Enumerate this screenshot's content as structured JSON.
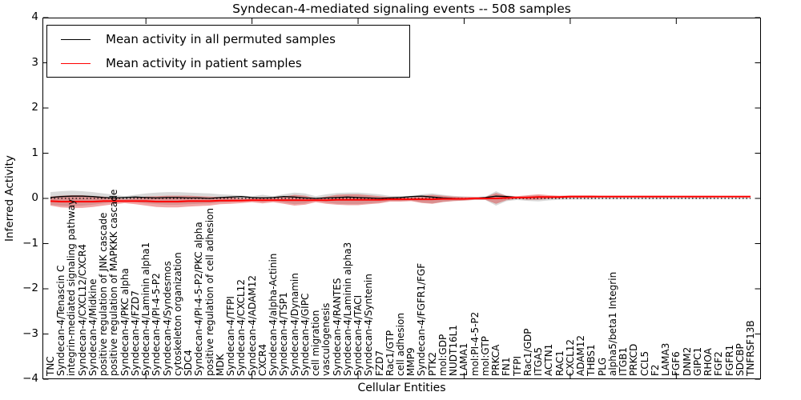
{
  "chart_data": {
    "type": "line",
    "title": "Syndecan-4-mediated signaling events -- 508 samples",
    "xlabel": "Cellular Entities",
    "ylabel": "Inferred Activity",
    "ylim": [
      -4,
      4
    ],
    "ytick_labels": [
      "4",
      "3",
      "2",
      "1",
      "0",
      "−1",
      "−2",
      "−3",
      "−4"
    ],
    "ytick_values": [
      4,
      3,
      2,
      1,
      0,
      -1,
      -2,
      -3,
      -4
    ],
    "xticks_major_indices": [
      9,
      19,
      29,
      39,
      49,
      59
    ],
    "grid": false,
    "legend_position": "upper left",
    "legend": [
      {
        "label": "Mean activity in all permuted samples",
        "color": "#000000"
      },
      {
        "label": "Mean activity in patient samples",
        "color": "#ff0000"
      }
    ],
    "zero_line": {
      "style": "dotted",
      "color": "#000000",
      "value": 0
    },
    "categories": [
      "TNC",
      "Syndecan-4/Tenascin C",
      "integrin-mediated signaling pathway",
      "Syndecan-4/CXCL12/CXCR4",
      "Syndecan-4/Midkine",
      "positive regulation of JNK cascade",
      "positive regulation of MAPKKK cascade",
      "Syndecan-4/PKC alpha",
      "Syndecan-4/FZD7",
      "Syndecan-4/Laminin alpha1",
      "Syndecan-4/PI-4-5-P2",
      "Syndecan-4/Syndesmos",
      "cytoskeleton organization",
      "SDC4",
      "Syndecan-4/PI-4-5-P2/PKC alpha",
      "positive regulation of cell adhesion",
      "MDK",
      "Syndecan-4/TFPI",
      "Syndecan-4/CXCL12",
      "Syndecan-4/ADAM12",
      "CXCR4",
      "Syndecan-4/alpha-Actinin",
      "Syndecan-4/TSP1",
      "Syndecan-4/Dynamin",
      "Syndecan-4/GIPC",
      "cell migration",
      "vasculogenesis",
      "Syndecan-4/RANTES",
      "Syndecan-4/Laminin alpha3",
      "Syndecan-4/TACI",
      "Syndecan-4/Syntenin",
      "FZD7",
      "Rac1/GTP",
      "cell adhesion",
      "MMP9",
      "Syndecan-4/FGFR1/FGF",
      "PTK2",
      "mol:GDP",
      "NUDT16L1",
      "LAMA1",
      "mol:PI-4-5-P2",
      "mol:GTP",
      "PRKCA",
      "FN1",
      "TFPI",
      "Rac1/GDP",
      "ITGA5",
      "ACTN1",
      "RAC1",
      "CXCL12",
      "ADAM12",
      "THBS1",
      "PLG",
      "alpha5/beta1 Integrin",
      "ITGB1",
      "PRKCD",
      "CCL5",
      "F2",
      "LAMA3",
      "FGF6",
      "DNM2",
      "GIPC1",
      "RHOA",
      "FGF2",
      "FGFR1",
      "SDCBP",
      "TNFRSF13B"
    ],
    "series": [
      {
        "name": "Mean activity in all permuted samples",
        "color": "#000000",
        "values": [
          0.02,
          0.04,
          0.05,
          0.05,
          0.04,
          0.02,
          0.01,
          0.02,
          0.03,
          0.02,
          0.01,
          0.02,
          0.02,
          0.01,
          0.01,
          0.0,
          0.02,
          0.03,
          0.04,
          0.02,
          0.01,
          0.02,
          0.04,
          0.03,
          0.01,
          0.0,
          0.01,
          0.02,
          0.03,
          0.02,
          0.01,
          0.0,
          0.01,
          0.02,
          0.04,
          0.05,
          0.03,
          0.01,
          0.0,
          -0.01,
          0.0,
          0.02,
          0.05,
          0.04,
          0.02,
          0.02,
          0.03,
          0.03,
          0.03,
          0.04,
          0.04,
          0.04,
          0.04,
          0.04,
          0.04,
          0.04,
          0.04,
          0.04,
          0.04,
          0.04,
          0.04,
          0.04,
          0.04,
          0.04,
          0.04,
          0.04,
          0.04
        ]
      },
      {
        "name": "Mean activity in patient samples",
        "color": "#ff0000",
        "values": [
          -0.06,
          -0.07,
          -0.07,
          -0.07,
          -0.07,
          -0.06,
          -0.06,
          -0.06,
          -0.06,
          -0.06,
          -0.07,
          -0.07,
          -0.07,
          -0.06,
          -0.06,
          -0.06,
          -0.05,
          -0.05,
          -0.05,
          -0.04,
          -0.04,
          -0.04,
          -0.04,
          -0.04,
          -0.04,
          -0.04,
          -0.04,
          -0.03,
          -0.03,
          -0.03,
          -0.03,
          -0.03,
          -0.02,
          -0.02,
          -0.02,
          -0.02,
          -0.02,
          -0.01,
          -0.01,
          -0.01,
          0.0,
          0.0,
          0.0,
          0.01,
          0.02,
          0.02,
          0.03,
          0.03,
          0.03,
          0.04,
          0.04,
          0.04,
          0.04,
          0.04,
          0.04,
          0.04,
          0.04,
          0.04,
          0.04,
          0.04,
          0.04,
          0.04,
          0.04,
          0.04,
          0.04,
          0.04,
          0.04
        ]
      }
    ],
    "bands": [
      {
        "name": "permuted-range",
        "color": "#666666",
        "opacity": 0.25,
        "center": "zero",
        "halfwidths": [
          0.14,
          0.16,
          0.17,
          0.16,
          0.14,
          0.11,
          0.08,
          0.05,
          0.08,
          0.11,
          0.13,
          0.14,
          0.14,
          0.13,
          0.12,
          0.11,
          0.09,
          0.08,
          0.06,
          0.05,
          0.08,
          0.05,
          0.09,
          0.13,
          0.11,
          0.05,
          0.09,
          0.12,
          0.13,
          0.13,
          0.11,
          0.09,
          0.055,
          0.055,
          0.045,
          0.09,
          0.11,
          0.08,
          0.055,
          0.045,
          0.035,
          0.035,
          0.16,
          0.06,
          0.035,
          0.055,
          0.065,
          0.045,
          0.03,
          0.025,
          0.025,
          0.025,
          0.02,
          0.02,
          0.02,
          0.02,
          0.02,
          0.02,
          0.02,
          0.018,
          0.018,
          0.018,
          0.018,
          0.015,
          0.015,
          0.015,
          0.015
        ]
      },
      {
        "name": "patient-range",
        "color": "#dd2222",
        "opacity": 0.4,
        "center": "patient",
        "halfwidths": [
          0.1,
          0.13,
          0.14,
          0.14,
          0.12,
          0.1,
          0.07,
          0.045,
          0.07,
          0.1,
          0.12,
          0.13,
          0.13,
          0.12,
          0.11,
          0.1,
          0.08,
          0.07,
          0.055,
          0.045,
          0.07,
          0.045,
          0.08,
          0.12,
          0.1,
          0.045,
          0.08,
          0.11,
          0.12,
          0.12,
          0.1,
          0.08,
          0.05,
          0.05,
          0.04,
          0.08,
          0.1,
          0.07,
          0.05,
          0.04,
          0.03,
          0.03,
          0.12,
          0.05,
          0.03,
          0.05,
          0.06,
          0.04,
          0.03,
          0.025,
          0.025,
          0.025,
          0.02,
          0.02,
          0.02,
          0.02,
          0.02,
          0.02,
          0.02,
          0.018,
          0.018,
          0.018,
          0.018,
          0.015,
          0.015,
          0.015,
          0.015
        ]
      }
    ]
  }
}
